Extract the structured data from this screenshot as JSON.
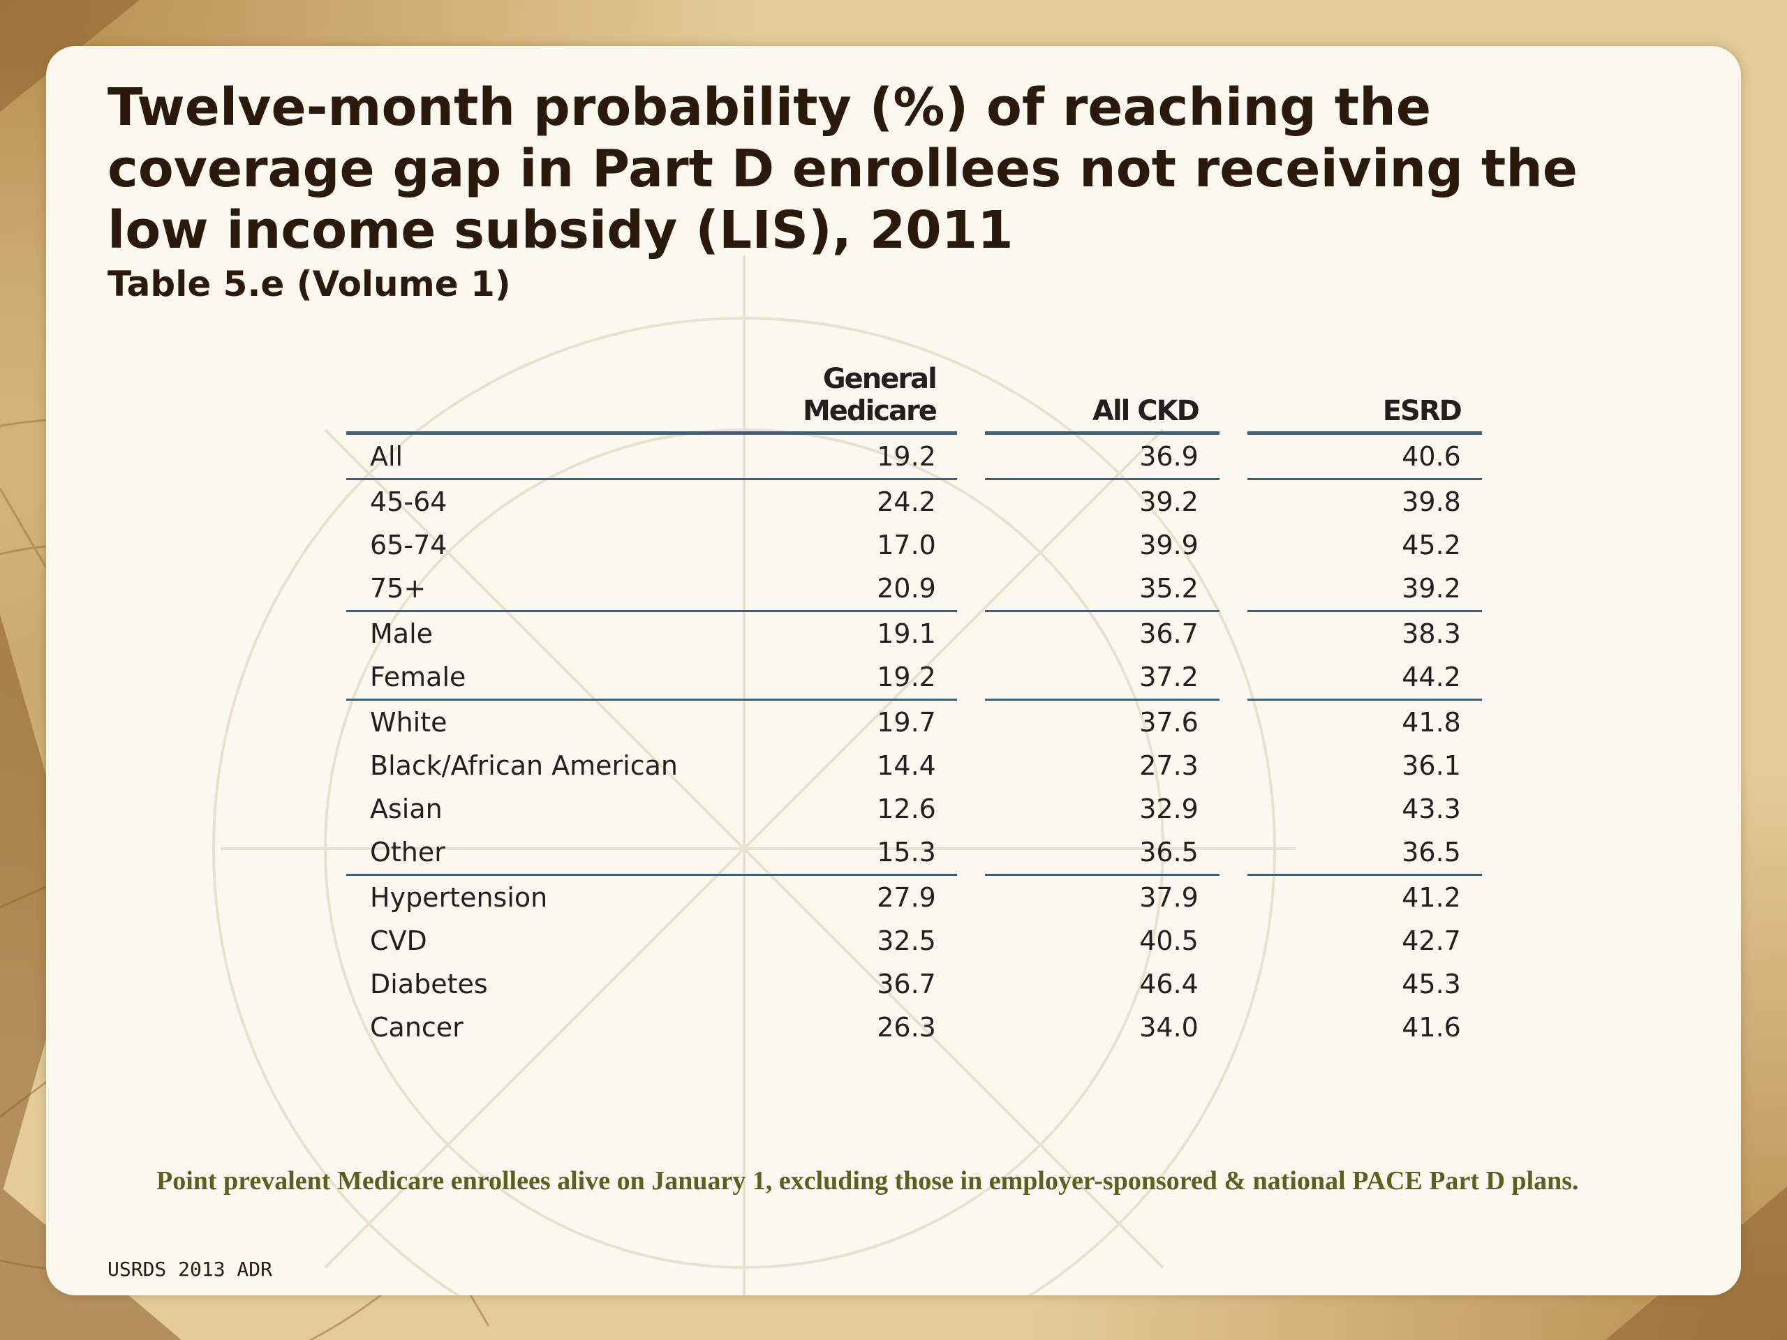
{
  "title": "Twelve-month probability (%) of reaching the coverage gap in Part D enrollees not receiving the low income subsidy  (LIS), 2011",
  "subtitle": "Table 5.e (Volume 1)",
  "table": {
    "headers": [
      "General Medicare",
      "All CKD",
      "ESRD"
    ],
    "rows": [
      {
        "label": "All",
        "values": [
          "19.2",
          "36.9",
          "40.6"
        ]
      },
      {
        "label": "45-64",
        "values": [
          "24.2",
          "39.2",
          "39.8"
        ]
      },
      {
        "label": "65-74",
        "values": [
          "17.0",
          "39.9",
          "45.2"
        ]
      },
      {
        "label": "75+",
        "values": [
          "20.9",
          "35.2",
          "39.2"
        ]
      },
      {
        "label": "Male",
        "values": [
          "19.1",
          "36.7",
          "38.3"
        ]
      },
      {
        "label": "Female",
        "values": [
          "19.2",
          "37.2",
          "44.2"
        ]
      },
      {
        "label": "White",
        "values": [
          "19.7",
          "37.6",
          "41.8"
        ]
      },
      {
        "label": "Black/African American",
        "values": [
          "14.4",
          "27.3",
          "36.1"
        ]
      },
      {
        "label": "Asian",
        "values": [
          "12.6",
          "32.9",
          "43.3"
        ]
      },
      {
        "label": "Other",
        "values": [
          "15.3",
          "36.5",
          "36.5"
        ]
      },
      {
        "label": "Hypertension",
        "values": [
          "27.9",
          "37.9",
          "41.2"
        ]
      },
      {
        "label": "CVD",
        "values": [
          "32.5",
          "40.5",
          "42.7"
        ]
      },
      {
        "label": "Diabetes",
        "values": [
          "36.7",
          "46.4",
          "45.3"
        ]
      },
      {
        "label": "Cancer",
        "values": [
          "26.3",
          "34.0",
          "41.6"
        ]
      }
    ]
  },
  "footnote": "Point prevalent Medicare enrollees alive on January 1, excluding those in employer-sponsored & national PACE Part D plans.",
  "source": "USRDS 2013 ADR",
  "colors": {
    "rule": "#3f5f78",
    "title": "#2b1a0c",
    "note": "#5e5e20",
    "panel": "#faf8ef",
    "frame": "#e4cb98"
  }
}
